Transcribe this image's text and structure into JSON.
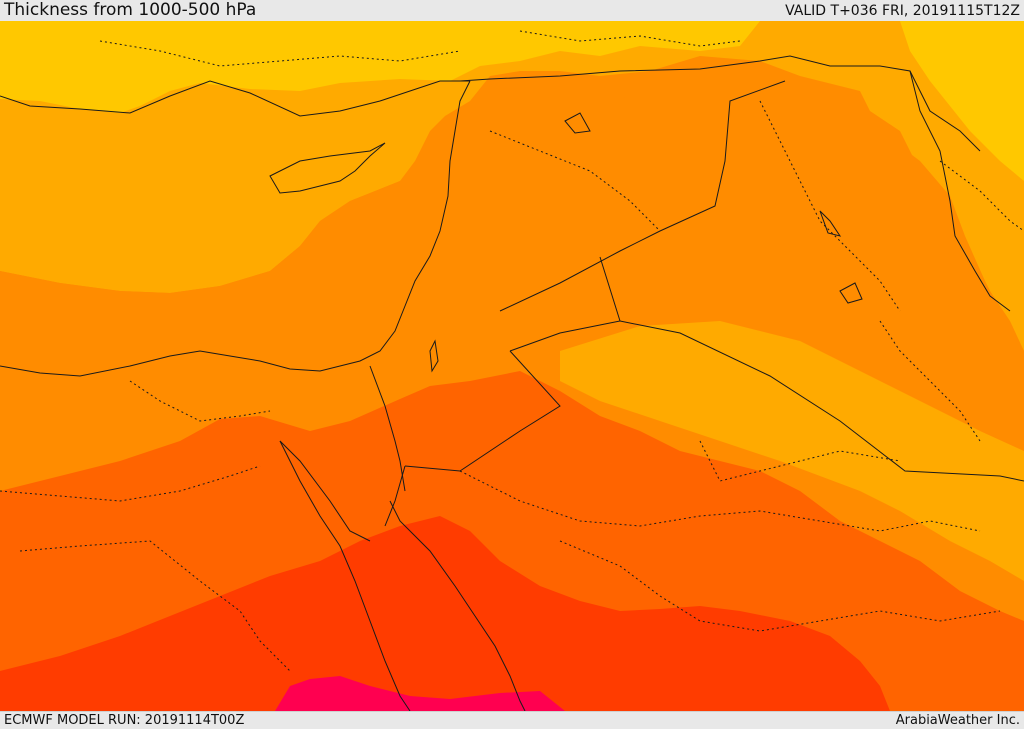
{
  "header": {
    "title": "Thickness from 1000-500 hPa",
    "valid_time": "VALID T+036 FRI, 20191115T12Z"
  },
  "footer": {
    "model_run": "ECMWF MODEL RUN: 20191114T00Z",
    "credit": "ArabiaWeather Inc."
  },
  "colors": {
    "band_yellow": "#ffc800",
    "band_light_orange": "#ffaa00",
    "band_orange": "#ff8c00",
    "band_dark_orange": "#ff6400",
    "band_red_orange": "#ff3c00",
    "band_magenta": "#ff0050",
    "border_line": "#1a1a1a"
  }
}
